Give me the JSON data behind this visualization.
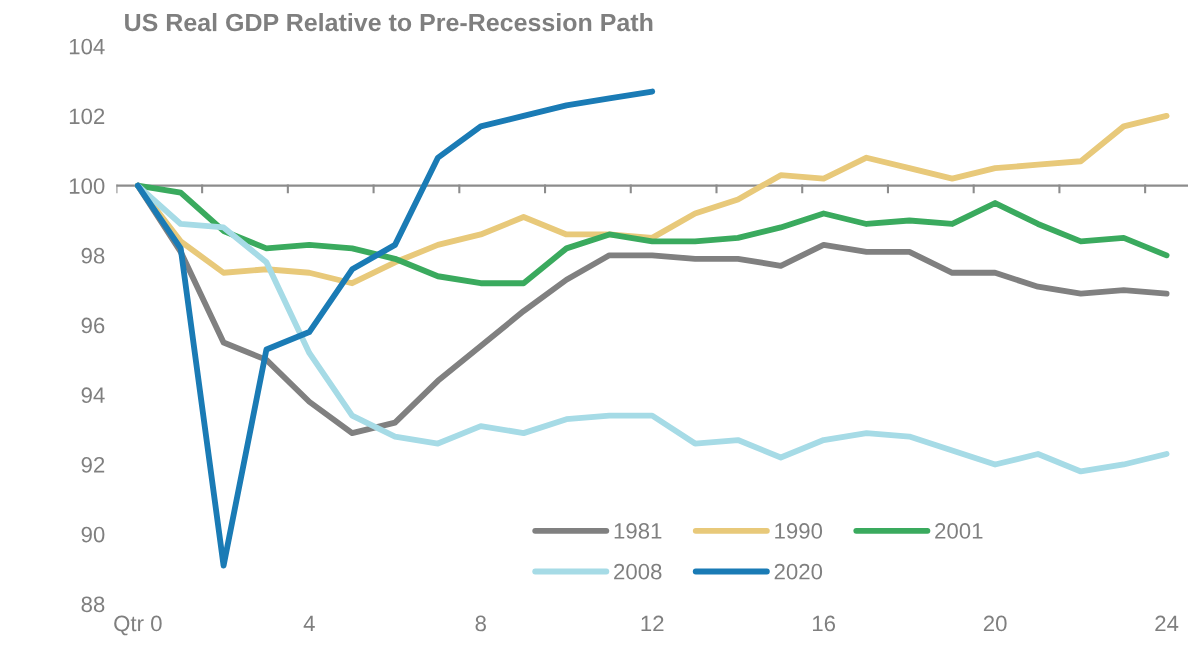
{
  "chart_data": {
    "type": "line",
    "title": "US Real GDP Relative to Pre-Recession Path",
    "x": [
      0,
      1,
      2,
      3,
      4,
      5,
      6,
      7,
      8,
      9,
      10,
      11,
      12,
      13,
      14,
      15,
      16,
      17,
      18,
      19,
      20,
      21,
      22,
      23,
      24
    ],
    "series": [
      {
        "name": "1981",
        "color": "#808080",
        "values": [
          100,
          98.1,
          95.5,
          95.0,
          93.8,
          92.9,
          93.2,
          94.4,
          95.4,
          96.4,
          97.3,
          98.0,
          98.0,
          97.9,
          97.9,
          97.7,
          98.3,
          98.1,
          98.1,
          97.5,
          97.5,
          97.1,
          96.9,
          97.0,
          96.9
        ]
      },
      {
        "name": "1990",
        "color": "#e8c97a",
        "values": [
          100,
          98.4,
          97.5,
          97.6,
          97.5,
          97.2,
          97.8,
          98.3,
          98.6,
          99.1,
          98.6,
          98.6,
          98.5,
          99.2,
          99.6,
          100.3,
          100.2,
          100.8,
          100.5,
          100.2,
          100.5,
          100.6,
          100.7,
          101.7,
          102.0
        ]
      },
      {
        "name": "2001",
        "color": "#3aaa5e",
        "values": [
          100,
          99.8,
          98.7,
          98.2,
          98.3,
          98.2,
          97.9,
          97.4,
          97.2,
          97.2,
          98.2,
          98.6,
          98.4,
          98.4,
          98.5,
          98.8,
          99.2,
          98.9,
          99.0,
          98.9,
          99.5,
          98.9,
          98.4,
          98.5,
          98.0
        ]
      },
      {
        "name": "2008",
        "color": "#a6dbe6",
        "values": [
          100,
          98.9,
          98.8,
          97.8,
          95.2,
          93.4,
          92.8,
          92.6,
          93.1,
          92.9,
          93.3,
          93.4,
          93.4,
          92.6,
          92.7,
          92.2,
          92.7,
          92.9,
          92.8,
          92.4,
          92.0,
          92.3,
          91.8,
          92.0,
          92.3
        ]
      },
      {
        "name": "2020",
        "color": "#1a7bb5",
        "values": [
          100,
          98.2,
          89.1,
          95.3,
          95.8,
          97.6,
          98.3,
          100.8,
          101.7,
          102.0,
          102.3,
          102.5,
          102.7,
          null,
          null,
          null,
          null,
          null,
          null,
          null,
          null,
          null,
          null,
          null,
          null
        ]
      }
    ],
    "xlim": [
      -0.5,
      24.5
    ],
    "xticks": [
      {
        "value": 0,
        "label": "Qtr 0"
      },
      4,
      8,
      12,
      16,
      20,
      24
    ],
    "ylim": [
      88,
      104
    ],
    "yticks": [
      88,
      90,
      92,
      94,
      96,
      98,
      100,
      102,
      104
    ],
    "ref_lines": [
      {
        "axis": "y",
        "value": 100,
        "color": "#8c8c8c"
      }
    ],
    "legend": "bottom",
    "grid": false,
    "marker": "none",
    "line_style": "solid"
  }
}
